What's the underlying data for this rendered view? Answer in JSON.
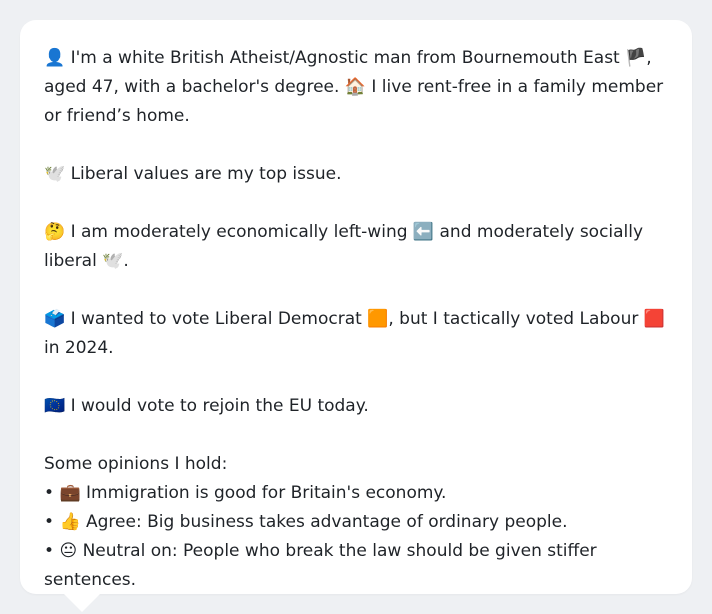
{
  "profile": {
    "p1": {
      "e1": "👤",
      "t1": " I'm a white British Atheist/Agnostic man from Bournemouth East ",
      "e2": "🏴",
      "t2": ", aged 47, with a bachelor's degree. ",
      "e3": "🏠",
      "t3": " I live rent-free in a family member or friend’s home."
    },
    "p2": {
      "e1": "🕊️",
      "t1": " Liberal values are my top issue."
    },
    "p3": {
      "e1": "🤔",
      "t1": " I am moderately economically left-wing ",
      "e2": "⬅️",
      "t2": " and moderately socially liberal ",
      "e3": "🕊️",
      "t3": "."
    },
    "p4": {
      "e1": "🗳️",
      "t1": " I wanted to vote Liberal Democrat ",
      "e2": "🟧",
      "t2": ", but I tactically voted Labour ",
      "e3": "🟥",
      "t3": " in 2024."
    },
    "p5": {
      "e1": "🇪🇺",
      "t1": " I would vote to rejoin the EU today."
    },
    "opinions": {
      "heading": "Some opinions I hold:",
      "items": [
        {
          "bullet": "•",
          "emoji": "💼",
          "text": " Immigration is good for Britain's economy."
        },
        {
          "bullet": "•",
          "emoji": "👍",
          "text": " Agree: Big business takes advantage of ordinary people."
        },
        {
          "bullet": "•",
          "emoji": "😐",
          "text": " Neutral on: People who break the law should be given stiffer sentences."
        }
      ]
    }
  }
}
